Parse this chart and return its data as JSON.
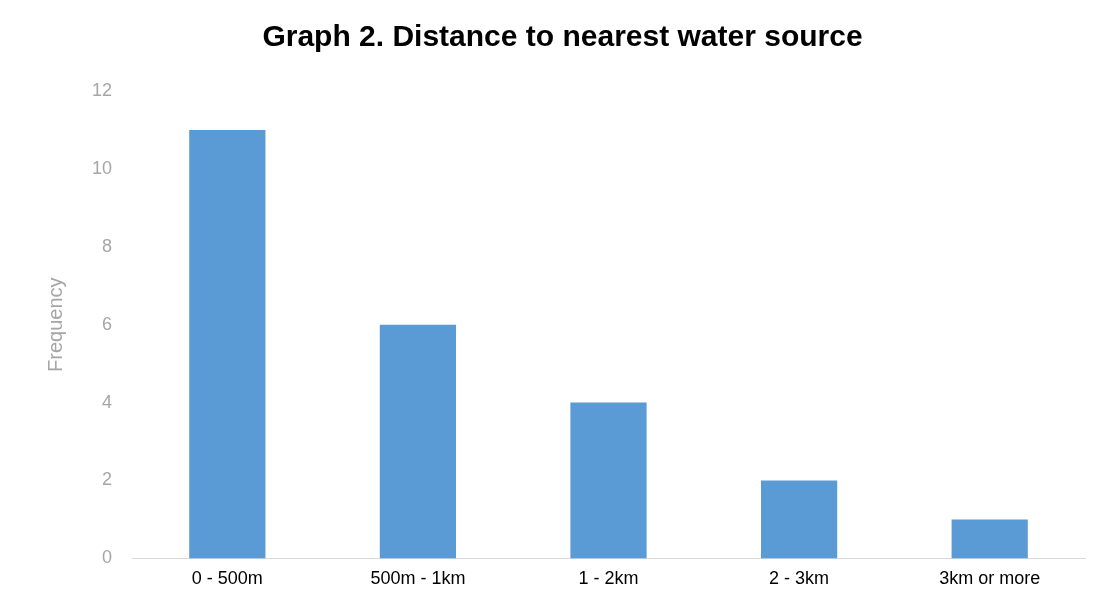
{
  "chart_data": {
    "type": "bar",
    "title": "Graph 2. Distance to nearest water source",
    "ylabel": "Frequency",
    "categories": [
      "0 - 500m",
      "500m - 1km",
      "1 - 2km",
      "2 - 3km",
      "3km or more"
    ],
    "values": [
      11,
      6,
      4,
      2,
      1
    ],
    "color": "#5b9bd5",
    "ylim": [
      0,
      12
    ],
    "yticks": [
      0,
      2,
      4,
      6,
      8,
      10,
      12
    ],
    "grid": false,
    "legend": false
  }
}
